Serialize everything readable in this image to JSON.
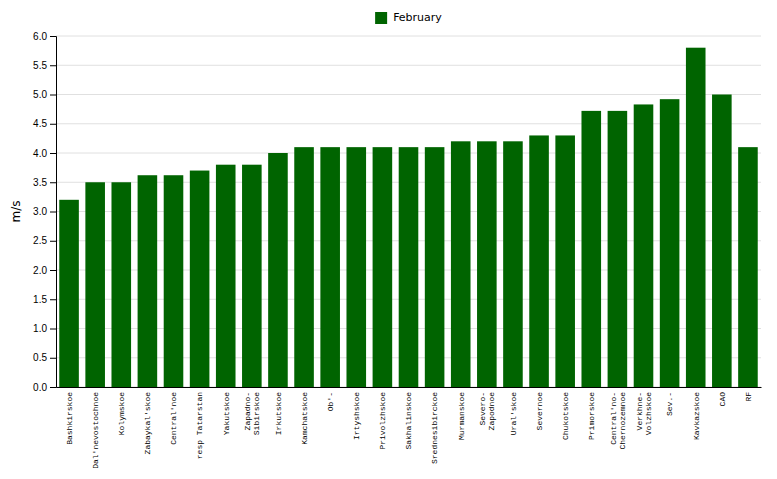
{
  "chart_data": {
    "type": "bar",
    "y_label": "m/s",
    "categories": [
      "Bashkirskoe",
      "Dal'nevostochnoe",
      "Kolymskoe",
      "Zabaykal'skoe",
      "Central'noe",
      "resp Tatarstan",
      "Yakutskoe",
      "Zapadno-\nSibirskoe",
      "Irkutskoe",
      "Kamchatskoe",
      "Ob'-",
      "Irtyshskoe",
      "Privolzhskoe",
      "Sakhalinskoe",
      "Srednesibirсkoe",
      "Murmanskoe",
      "Severo-\nZapodnoe",
      "Ural'skoe",
      "Severnoe",
      "Chukotskoe",
      "Primorskoe",
      "Central'no-\nChernozemnoe",
      "Verkhne-\nVolzhskoe",
      "Sev.-",
      "Kavkazskoe",
      "CAO",
      "RF"
    ],
    "series": [
      {
        "name": "February",
        "color": "#006400",
        "values": [
          3.2,
          3.5,
          3.5,
          3.62,
          3.62,
          3.7,
          3.8,
          3.8,
          4.0,
          4.1,
          4.1,
          4.1,
          4.1,
          4.1,
          4.1,
          4.2,
          4.2,
          4.2,
          4.3,
          4.3,
          4.72,
          4.72,
          4.83,
          4.92,
          5.8,
          5.0,
          4.1
        ]
      }
    ],
    "ylim": [
      0,
      6
    ],
    "yticks": [
      {
        "value": 0,
        "label": "0.0"
      },
      0.5,
      {
        "value": 1,
        "label": "1.0"
      },
      1.5,
      {
        "value": 2,
        "label": "2.0"
      },
      2.5,
      {
        "value": 3,
        "label": "3.0"
      },
      3.5,
      {
        "value": 4,
        "label": "4.0"
      },
      4.5,
      {
        "value": 5,
        "label": "5.0"
      },
      5.5,
      {
        "value": 6,
        "label": "6.0"
      }
    ],
    "grid": true,
    "legend": "top"
  }
}
